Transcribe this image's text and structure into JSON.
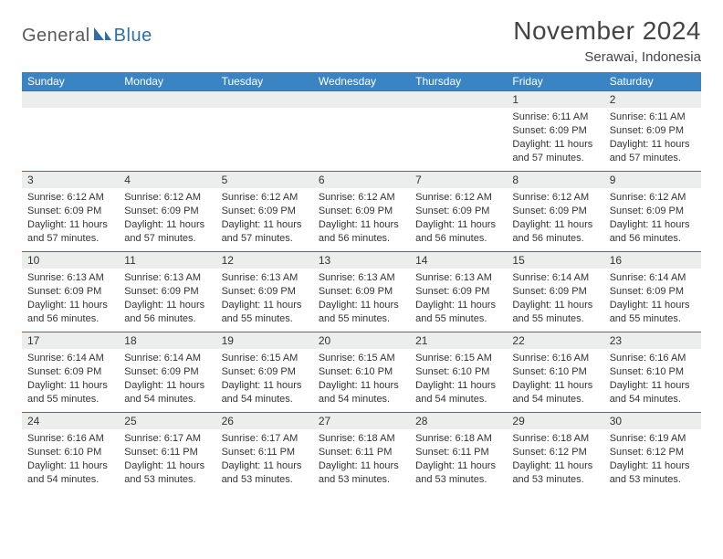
{
  "brand": {
    "general": "General",
    "blue": "Blue"
  },
  "header": {
    "title": "November 2024",
    "location": "Serawai, Indonesia"
  },
  "colors": {
    "header_bg": "#3b84c4",
    "header_text": "#ffffff",
    "band_bg": "#eceded",
    "row_border": "#3b6fa0",
    "text": "#333333",
    "logo_gray": "#5a5a5a",
    "logo_blue": "#2f6fa8"
  },
  "weekdays": [
    "Sunday",
    "Monday",
    "Tuesday",
    "Wednesday",
    "Thursday",
    "Friday",
    "Saturday"
  ],
  "first_weekday_index": 5,
  "days": [
    {
      "n": 1,
      "sr": "6:11 AM",
      "ss": "6:09 PM",
      "dl": "11 hours and 57 minutes."
    },
    {
      "n": 2,
      "sr": "6:11 AM",
      "ss": "6:09 PM",
      "dl": "11 hours and 57 minutes."
    },
    {
      "n": 3,
      "sr": "6:12 AM",
      "ss": "6:09 PM",
      "dl": "11 hours and 57 minutes."
    },
    {
      "n": 4,
      "sr": "6:12 AM",
      "ss": "6:09 PM",
      "dl": "11 hours and 57 minutes."
    },
    {
      "n": 5,
      "sr": "6:12 AM",
      "ss": "6:09 PM",
      "dl": "11 hours and 57 minutes."
    },
    {
      "n": 6,
      "sr": "6:12 AM",
      "ss": "6:09 PM",
      "dl": "11 hours and 56 minutes."
    },
    {
      "n": 7,
      "sr": "6:12 AM",
      "ss": "6:09 PM",
      "dl": "11 hours and 56 minutes."
    },
    {
      "n": 8,
      "sr": "6:12 AM",
      "ss": "6:09 PM",
      "dl": "11 hours and 56 minutes."
    },
    {
      "n": 9,
      "sr": "6:12 AM",
      "ss": "6:09 PM",
      "dl": "11 hours and 56 minutes."
    },
    {
      "n": 10,
      "sr": "6:13 AM",
      "ss": "6:09 PM",
      "dl": "11 hours and 56 minutes."
    },
    {
      "n": 11,
      "sr": "6:13 AM",
      "ss": "6:09 PM",
      "dl": "11 hours and 56 minutes."
    },
    {
      "n": 12,
      "sr": "6:13 AM",
      "ss": "6:09 PM",
      "dl": "11 hours and 55 minutes."
    },
    {
      "n": 13,
      "sr": "6:13 AM",
      "ss": "6:09 PM",
      "dl": "11 hours and 55 minutes."
    },
    {
      "n": 14,
      "sr": "6:13 AM",
      "ss": "6:09 PM",
      "dl": "11 hours and 55 minutes."
    },
    {
      "n": 15,
      "sr": "6:14 AM",
      "ss": "6:09 PM",
      "dl": "11 hours and 55 minutes."
    },
    {
      "n": 16,
      "sr": "6:14 AM",
      "ss": "6:09 PM",
      "dl": "11 hours and 55 minutes."
    },
    {
      "n": 17,
      "sr": "6:14 AM",
      "ss": "6:09 PM",
      "dl": "11 hours and 55 minutes."
    },
    {
      "n": 18,
      "sr": "6:14 AM",
      "ss": "6:09 PM",
      "dl": "11 hours and 54 minutes."
    },
    {
      "n": 19,
      "sr": "6:15 AM",
      "ss": "6:09 PM",
      "dl": "11 hours and 54 minutes."
    },
    {
      "n": 20,
      "sr": "6:15 AM",
      "ss": "6:10 PM",
      "dl": "11 hours and 54 minutes."
    },
    {
      "n": 21,
      "sr": "6:15 AM",
      "ss": "6:10 PM",
      "dl": "11 hours and 54 minutes."
    },
    {
      "n": 22,
      "sr": "6:16 AM",
      "ss": "6:10 PM",
      "dl": "11 hours and 54 minutes."
    },
    {
      "n": 23,
      "sr": "6:16 AM",
      "ss": "6:10 PM",
      "dl": "11 hours and 54 minutes."
    },
    {
      "n": 24,
      "sr": "6:16 AM",
      "ss": "6:10 PM",
      "dl": "11 hours and 54 minutes."
    },
    {
      "n": 25,
      "sr": "6:17 AM",
      "ss": "6:11 PM",
      "dl": "11 hours and 53 minutes."
    },
    {
      "n": 26,
      "sr": "6:17 AM",
      "ss": "6:11 PM",
      "dl": "11 hours and 53 minutes."
    },
    {
      "n": 27,
      "sr": "6:18 AM",
      "ss": "6:11 PM",
      "dl": "11 hours and 53 minutes."
    },
    {
      "n": 28,
      "sr": "6:18 AM",
      "ss": "6:11 PM",
      "dl": "11 hours and 53 minutes."
    },
    {
      "n": 29,
      "sr": "6:18 AM",
      "ss": "6:12 PM",
      "dl": "11 hours and 53 minutes."
    },
    {
      "n": 30,
      "sr": "6:19 AM",
      "ss": "6:12 PM",
      "dl": "11 hours and 53 minutes."
    }
  ],
  "labels": {
    "sunrise": "Sunrise: ",
    "sunset": "Sunset: ",
    "daylight": "Daylight: "
  }
}
